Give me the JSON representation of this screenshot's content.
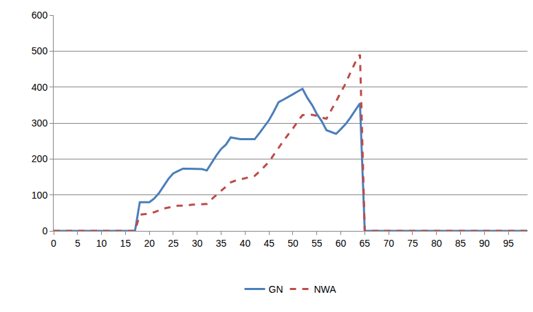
{
  "chart_data": {
    "type": "line",
    "x": [
      0,
      1,
      2,
      3,
      4,
      5,
      6,
      7,
      8,
      9,
      10,
      11,
      12,
      13,
      14,
      15,
      16,
      17,
      18,
      19,
      20,
      21,
      22,
      23,
      24,
      25,
      26,
      27,
      28,
      29,
      30,
      31,
      32,
      33,
      34,
      35,
      36,
      37,
      38,
      39,
      40,
      41,
      42,
      43,
      44,
      45,
      46,
      47,
      48,
      49,
      50,
      51,
      52,
      53,
      54,
      55,
      56,
      57,
      58,
      59,
      60,
      61,
      62,
      63,
      64,
      65,
      66,
      67,
      68,
      69,
      70,
      71,
      72,
      73,
      74,
      75,
      76,
      77,
      78,
      79,
      80,
      81,
      82,
      83,
      84,
      85,
      86,
      87,
      88,
      89,
      90,
      91,
      92,
      93,
      94,
      95,
      96,
      97,
      98,
      99
    ],
    "series": [
      {
        "name": "GN",
        "color": "#4a7ebb",
        "line_style": "solid",
        "values": [
          0,
          0,
          0,
          0,
          0,
          0,
          0,
          0,
          0,
          0,
          0,
          0,
          0,
          0,
          0,
          0,
          0,
          0,
          80,
          80,
          80,
          90,
          105,
          125,
          145,
          160,
          167,
          173,
          173,
          173,
          173,
          172,
          168,
          190,
          210,
          228,
          240,
          260,
          257,
          255,
          255,
          255,
          255,
          272,
          290,
          308,
          332,
          358,
          365,
          372,
          380,
          388,
          395,
          370,
          350,
          325,
          305,
          280,
          275,
          270,
          283,
          297,
          315,
          335,
          355,
          0,
          0,
          0,
          0,
          0,
          0,
          0,
          0,
          0,
          0,
          0,
          0,
          0,
          0,
          0,
          0,
          0,
          0,
          0,
          0,
          0,
          0,
          0,
          0,
          0,
          0,
          0,
          0,
          0,
          0,
          0,
          0,
          0,
          0,
          0
        ]
      },
      {
        "name": "NWA",
        "color": "#be4b48",
        "line_style": "dash",
        "values": [
          0,
          0,
          0,
          0,
          0,
          0,
          0,
          0,
          0,
          0,
          0,
          0,
          0,
          0,
          0,
          0,
          0,
          0,
          45,
          47,
          48,
          52,
          57,
          62,
          65,
          68,
          70,
          70,
          72,
          73,
          73,
          74,
          75,
          88,
          100,
          112,
          124,
          135,
          140,
          143,
          147,
          150,
          153,
          165,
          178,
          192,
          212,
          232,
          250,
          268,
          285,
          305,
          322,
          323,
          323,
          320,
          315,
          312,
          335,
          360,
          385,
          410,
          440,
          468,
          490,
          0,
          0,
          0,
          0,
          0,
          0,
          0,
          0,
          0,
          0,
          0,
          0,
          0,
          0,
          0,
          0,
          0,
          0,
          0,
          0,
          0,
          0,
          0,
          0,
          0,
          0,
          0,
          0,
          0,
          0,
          0,
          0,
          0,
          0,
          0
        ]
      }
    ],
    "xlim": [
      0,
      99
    ],
    "xticks": [
      0,
      5,
      10,
      15,
      20,
      25,
      30,
      35,
      40,
      45,
      50,
      55,
      60,
      65,
      70,
      75,
      80,
      85,
      90,
      95
    ],
    "ylim": [
      0,
      600
    ],
    "yticks": [
      0,
      100,
      200,
      300,
      400,
      500,
      600
    ],
    "grid": true,
    "legend": "bottom"
  }
}
